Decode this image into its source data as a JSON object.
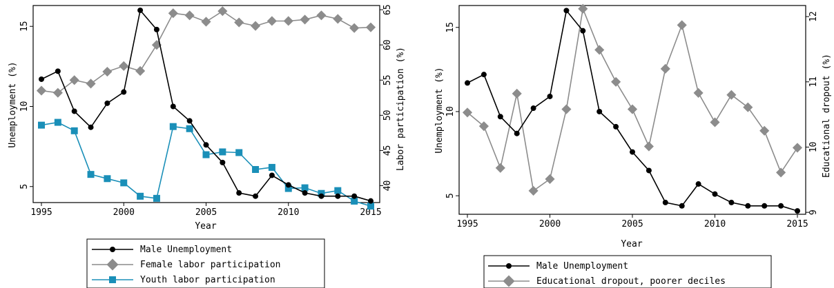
{
  "chart_data": [
    {
      "type": "line",
      "xlabel": "Year",
      "ylabel_left": "Unemployment (%)",
      "ylabel_right": "Labor participation (%)",
      "x": [
        1995,
        1996,
        1997,
        1998,
        1999,
        2000,
        2001,
        2002,
        2003,
        2004,
        2005,
        2006,
        2007,
        2008,
        2009,
        2010,
        2011,
        2012,
        2013,
        2014,
        2015
      ],
      "xticks": [
        "1995",
        "2000",
        "2005",
        "2010",
        "2015"
      ],
      "yticks_left": [
        "5",
        "10",
        "15"
      ],
      "yticks_right": [
        "40",
        "45",
        "50",
        "55",
        "60",
        "65"
      ],
      "ylim_left": [
        4.0,
        16.3
      ],
      "ylim_right": [
        37.6,
        65.6
      ],
      "series": [
        {
          "name": "Male Unemployment",
          "axis": "left",
          "color": "#000000",
          "marker": "circle",
          "values": [
            11.7,
            12.2,
            9.7,
            8.7,
            10.2,
            10.9,
            16.0,
            14.8,
            10.0,
            9.1,
            7.6,
            6.5,
            4.6,
            4.4,
            5.7,
            5.1,
            4.6,
            4.4,
            4.4,
            4.4,
            4.1
          ]
        },
        {
          "name": "Female labor participation",
          "axis": "right",
          "color": "#8c8c8c",
          "marker": "diamond",
          "values": [
            53.5,
            53.2,
            55.0,
            54.5,
            56.2,
            57.0,
            56.3,
            60.0,
            64.5,
            64.2,
            63.3,
            64.8,
            63.2,
            62.7,
            63.4,
            63.4,
            63.6,
            64.2,
            63.7,
            62.4,
            62.5
          ]
        },
        {
          "name": "Youth labor participation",
          "axis": "right",
          "color": "#1a8fb8",
          "marker": "square",
          "values": [
            48.6,
            49.0,
            47.8,
            41.6,
            41.0,
            40.4,
            38.5,
            38.2,
            48.4,
            48.1,
            44.4,
            44.8,
            44.7,
            42.3,
            42.6,
            39.6,
            39.7,
            38.9,
            39.3,
            37.8,
            37.1
          ]
        }
      ]
    },
    {
      "type": "line",
      "xlabel": "Year",
      "ylabel_left": "Unemployment (%)",
      "ylabel_right": "Educational dropout (%)",
      "x": [
        1995,
        1996,
        1997,
        1998,
        1999,
        2000,
        2001,
        2002,
        2003,
        2004,
        2005,
        2006,
        2007,
        2008,
        2009,
        2010,
        2011,
        2012,
        2013,
        2014,
        2015
      ],
      "xticks": [
        "1995",
        "2000",
        "2005",
        "2010",
        "2015"
      ],
      "yticks_left": [
        "5",
        "10",
        "15"
      ],
      "yticks_right": [
        "9",
        "10",
        "11",
        "12"
      ],
      "ylim_left": [
        3.9,
        16.3
      ],
      "ylim_right": [
        8.97,
        12.17
      ],
      "series": [
        {
          "name": "Male Unemployment",
          "axis": "left",
          "color": "#000000",
          "marker": "circle",
          "values": [
            11.7,
            12.2,
            9.7,
            8.7,
            10.2,
            10.9,
            16.0,
            14.8,
            10.0,
            9.1,
            7.6,
            6.5,
            4.6,
            4.4,
            5.7,
            5.1,
            4.6,
            4.4,
            4.4,
            4.4,
            4.1
          ]
        },
        {
          "name": "Educational dropout, poorer deciles",
          "axis": "right",
          "color": "#8c8c8c",
          "marker": "diamond",
          "values": [
            10.53,
            10.32,
            9.68,
            10.82,
            9.33,
            9.51,
            10.58,
            12.12,
            11.49,
            11.0,
            10.58,
            10.01,
            11.2,
            11.87,
            10.83,
            10.38,
            10.8,
            10.61,
            10.25,
            9.61,
            9.99
          ]
        }
      ]
    }
  ]
}
